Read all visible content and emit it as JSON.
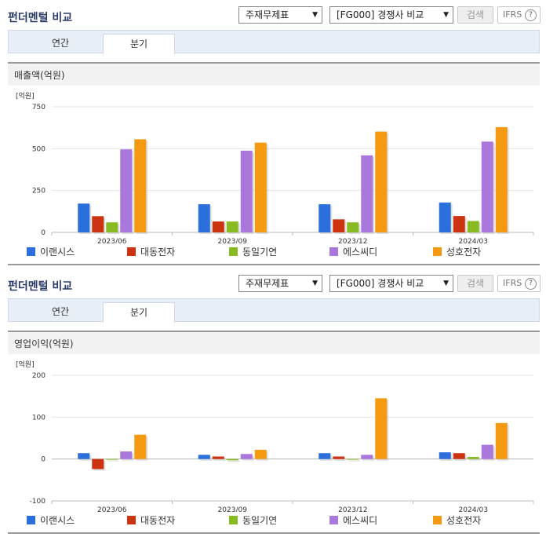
{
  "panels": [
    {
      "title": "펀더멘털 비교",
      "select1": "주재무제표",
      "select2": "[FG000] 경쟁사 비교",
      "search_btn": "검색",
      "ifrs_btn": "IFRS",
      "tabs": [
        "연간",
        "분기"
      ],
      "active_tab": 1,
      "chart_title": "매출액(억원)"
    },
    {
      "title": "펀더멘털 비교",
      "select1": "주재무제표",
      "select2": "[FG000] 경쟁사 비교",
      "search_btn": "검색",
      "ifrs_btn": "IFRS",
      "tabs": [
        "연간",
        "분기"
      ],
      "active_tab": 1,
      "chart_title": "영업이익(억원)"
    }
  ],
  "colors": {
    "이랜시스": "#2a6fdb",
    "대동전자": "#cc3311",
    "동일기연": "#88bb22",
    "에스씨디": "#aa77dd",
    "성호전자": "#f59a10"
  },
  "chart_data": [
    {
      "type": "bar",
      "title": "매출액(억원)",
      "unit_label": "[억원]",
      "categories": [
        "2023/06",
        "2023/09",
        "2023/12",
        "2024/03"
      ],
      "ylim": [
        0,
        750
      ],
      "yticks": [
        0,
        250,
        500,
        750
      ],
      "series": [
        {
          "name": "이랜시스",
          "values": [
            172,
            168,
            168,
            178
          ]
        },
        {
          "name": "대동전자",
          "values": [
            97,
            65,
            78,
            98
          ]
        },
        {
          "name": "동일기연",
          "values": [
            60,
            65,
            60,
            68
          ]
        },
        {
          "name": "에스씨디",
          "values": [
            496,
            488,
            460,
            542
          ]
        },
        {
          "name": "성호전자",
          "values": [
            556,
            536,
            602,
            628
          ]
        }
      ],
      "legend_position": "bottom"
    },
    {
      "type": "bar",
      "title": "영업이익(억원)",
      "unit_label": "[억원]",
      "categories": [
        "2023/06",
        "2023/09",
        "2023/12",
        "2024/03"
      ],
      "ylim": [
        -100,
        200
      ],
      "yticks": [
        -100,
        0,
        100,
        200
      ],
      "series": [
        {
          "name": "이랜시스",
          "values": [
            14,
            10,
            14,
            16
          ]
        },
        {
          "name": "대동전자",
          "values": [
            -24,
            6,
            6,
            14
          ]
        },
        {
          "name": "동일기연",
          "values": [
            0,
            -3,
            0,
            5
          ]
        },
        {
          "name": "에스씨디",
          "values": [
            18,
            12,
            10,
            34
          ]
        },
        {
          "name": "성호전자",
          "values": [
            58,
            22,
            145,
            86
          ]
        }
      ],
      "legend_position": "bottom"
    }
  ]
}
